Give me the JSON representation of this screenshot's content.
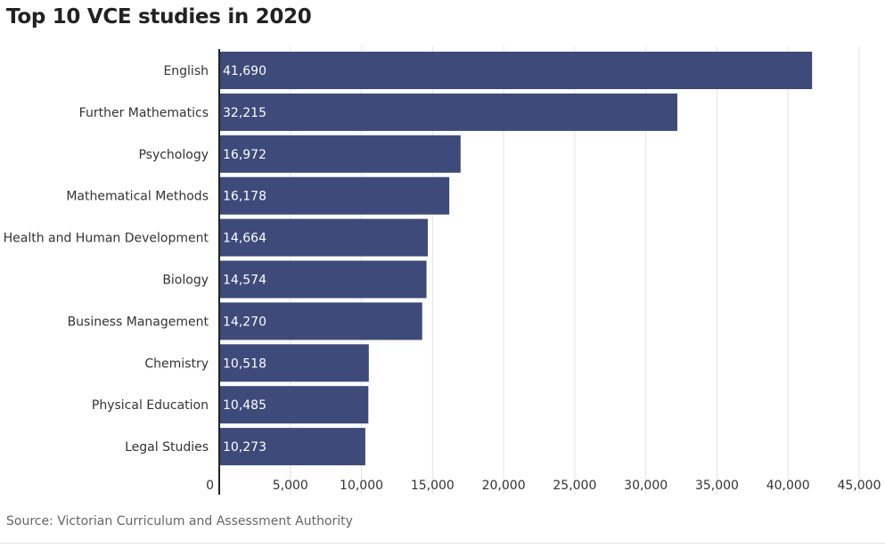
{
  "chart_data": {
    "type": "bar",
    "orientation": "horizontal",
    "title": "Top 10 VCE studies in 2020",
    "source": "Source: Victorian Curriculum and Assessment Authority",
    "categories": [
      "English",
      "Further Mathematics",
      "Psychology",
      "Mathematical Methods",
      "Health and Human Development",
      "Biology",
      "Business Management",
      "Chemistry",
      "Physical Education",
      "Legal Studies"
    ],
    "values": [
      41690,
      32215,
      16972,
      16178,
      14664,
      14574,
      14270,
      10518,
      10485,
      10273
    ],
    "value_labels": [
      "41,690",
      "32,215",
      "16,972",
      "16,178",
      "14,664",
      "14,574",
      "14,270",
      "10,518",
      "10,485",
      "10,273"
    ],
    "xlim": [
      0,
      45000
    ],
    "xticks": [
      0,
      5000,
      10000,
      15000,
      20000,
      25000,
      30000,
      35000,
      40000,
      45000
    ],
    "xtick_labels": [
      "0",
      "5,000",
      "10,000",
      "15,000",
      "20,000",
      "25,000",
      "30,000",
      "35,000",
      "40,000",
      "45,000"
    ],
    "grid": "vertical",
    "bar_color": "#3d4a7a",
    "label_color": "#ffffff"
  }
}
